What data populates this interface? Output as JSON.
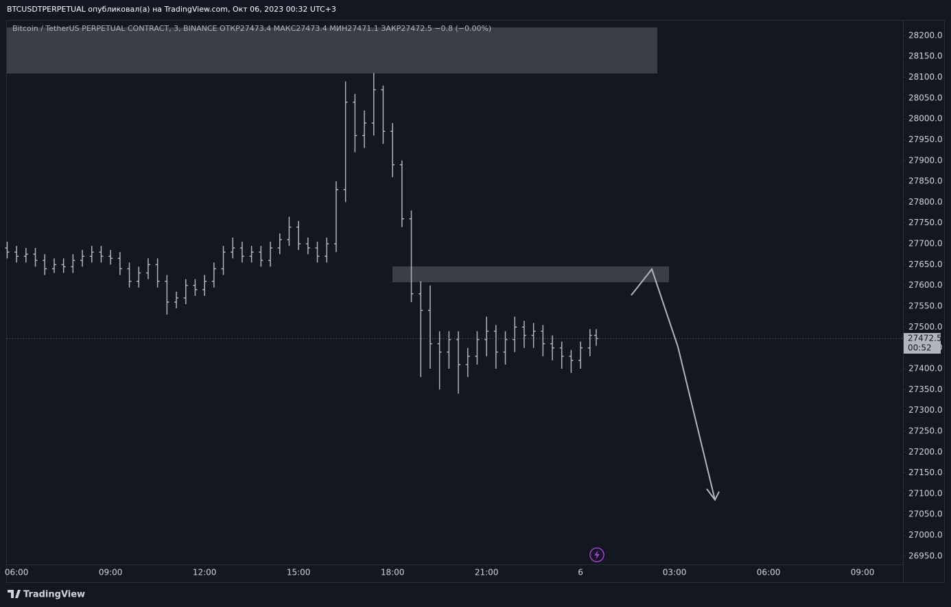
{
  "header": "BTCUSDTPERPETUAL опубликовал(а) на TradingView.com, Окт 06, 2023 00:32 UTC+3",
  "footer": "TradingView",
  "chart_data": {
    "type": "ohlc",
    "legend": "Bitcoin / TetherUS PERPETUAL CONTRACT, 3, BINANCE  ОТКР27473.4  МАКС27473.4  МИН27471.1  ЗАКР27472.5  −0.8 (−0.00%)",
    "countdown": "00:52",
    "color": "#b2b5be",
    "x": [
      5.7,
      6.0,
      6.3,
      6.6,
      6.9,
      7.2,
      7.5,
      7.8,
      8.1,
      8.4,
      8.7,
      9.0,
      9.3,
      9.6,
      9.9,
      10.2,
      10.5,
      10.8,
      11.1,
      11.4,
      11.7,
      12.0,
      12.3,
      12.6,
      12.9,
      13.2,
      13.5,
      13.8,
      14.1,
      14.4,
      14.7,
      15.0,
      15.3,
      15.6,
      15.9,
      16.2,
      16.5,
      16.8,
      17.1,
      17.4,
      17.7,
      18.0,
      18.3,
      18.6,
      18.9,
      19.2,
      19.5,
      19.8,
      20.1,
      20.4,
      20.7,
      21.0,
      21.3,
      21.6,
      21.9,
      22.2,
      22.5,
      22.8,
      23.1,
      23.4,
      23.7,
      24.0,
      24.3,
      24.5
    ],
    "open": [
      27690,
      27680,
      27670,
      27675,
      27660,
      27640,
      27650,
      27645,
      27660,
      27670,
      27680,
      27670,
      27665,
      27640,
      27610,
      27630,
      27650,
      27610,
      27560,
      27570,
      27600,
      27590,
      27610,
      27640,
      27680,
      27690,
      27670,
      27680,
      27660,
      27690,
      27710,
      27740,
      27700,
      27690,
      27670,
      27700,
      27830,
      28040,
      27960,
      27990,
      28070,
      27970,
      27890,
      27760,
      27580,
      27540,
      27460,
      27440,
      27470,
      27410,
      27430,
      27470,
      27490,
      27440,
      27470,
      27500,
      27480,
      27490,
      27460,
      27450,
      27430,
      27420,
      27450,
      27480
    ],
    "high": [
      27705,
      27695,
      27690,
      27690,
      27675,
      27665,
      27665,
      27675,
      27685,
      27695,
      27695,
      27685,
      27680,
      27655,
      27645,
      27665,
      27665,
      27625,
      27585,
      27615,
      27615,
      27625,
      27655,
      27695,
      27715,
      27705,
      27695,
      27695,
      27705,
      27725,
      27765,
      27755,
      27715,
      27705,
      27715,
      27850,
      28090,
      28060,
      28020,
      28110,
      28080,
      27990,
      27900,
      27780,
      27610,
      27600,
      27490,
      27490,
      27490,
      27450,
      27490,
      27525,
      27505,
      27490,
      27525,
      27515,
      27510,
      27505,
      27480,
      27465,
      27445,
      27465,
      27495,
      27495
    ],
    "low": [
      27665,
      27655,
      27655,
      27645,
      27625,
      27630,
      27630,
      27630,
      27645,
      27655,
      27655,
      27650,
      27625,
      27595,
      27595,
      27615,
      27595,
      27530,
      27545,
      27555,
      27575,
      27575,
      27595,
      27625,
      27665,
      27655,
      27655,
      27645,
      27645,
      27675,
      27695,
      27685,
      27675,
      27655,
      27655,
      27680,
      27800,
      27920,
      27930,
      27960,
      27940,
      27860,
      27740,
      27560,
      27380,
      27400,
      27350,
      27400,
      27340,
      27380,
      27410,
      27430,
      27400,
      27410,
      27440,
      27450,
      27450,
      27430,
      27420,
      27400,
      27390,
      27400,
      27430,
      27455
    ],
    "close": [
      27680,
      27670,
      27675,
      27660,
      27640,
      27650,
      27645,
      27660,
      27670,
      27680,
      27670,
      27665,
      27640,
      27610,
      27630,
      27650,
      27610,
      27560,
      27570,
      27600,
      27590,
      27610,
      27640,
      27680,
      27690,
      27670,
      27680,
      27660,
      27690,
      27710,
      27740,
      27700,
      27690,
      27670,
      27700,
      27830,
      28040,
      27960,
      27990,
      28070,
      27970,
      27890,
      27760,
      27580,
      27540,
      27460,
      27440,
      27470,
      27410,
      27430,
      27470,
      27490,
      27440,
      27470,
      27500,
      27480,
      27490,
      27460,
      27450,
      27430,
      27420,
      27450,
      27480,
      27472.5
    ],
    "xlim": [
      5.69,
      34.29
    ],
    "xticks": [
      {
        "value": 6,
        "label": "06:00"
      },
      {
        "value": 9,
        "label": "09:00"
      },
      {
        "value": 12,
        "label": "12:00"
      },
      {
        "value": 15,
        "label": "15:00"
      },
      {
        "value": 18,
        "label": "18:00"
      },
      {
        "value": 21,
        "label": "21:00"
      },
      {
        "value": 24,
        "label": "6"
      },
      {
        "value": 27,
        "label": "03:00"
      },
      {
        "value": 30,
        "label": "06:00"
      },
      {
        "value": 33,
        "label": "09:00"
      }
    ],
    "ylim": [
      26930,
      28236
    ],
    "yticks": [
      {
        "value": 26950,
        "label": "26950.0"
      },
      {
        "value": 27000,
        "label": "27000.0"
      },
      {
        "value": 27050,
        "label": "27050.0"
      },
      {
        "value": 27100,
        "label": "27100.0"
      },
      {
        "value": 27150,
        "label": "27150.0"
      },
      {
        "value": 27200,
        "label": "27200.0"
      },
      {
        "value": 27250,
        "label": "27250.0"
      },
      {
        "value": 27300,
        "label": "27300.0"
      },
      {
        "value": 27350,
        "label": "27350.0"
      },
      {
        "value": 27400,
        "label": "27400.0"
      },
      {
        "value": 27450,
        "label": "27450.0"
      },
      {
        "value": 27500,
        "label": "27500.0"
      },
      {
        "value": 27550,
        "label": "27550.0"
      },
      {
        "value": 27600,
        "label": "27600.0"
      },
      {
        "value": 27650,
        "label": "27650.0"
      },
      {
        "value": 27700,
        "label": "27700.0"
      },
      {
        "value": 27750,
        "label": "27750.0"
      },
      {
        "value": 27800,
        "label": "27800.0"
      },
      {
        "value": 27850,
        "label": "27850.0"
      },
      {
        "value": 27900,
        "label": "27900.0"
      },
      {
        "value": 27950,
        "label": "27950.0"
      },
      {
        "value": 28000,
        "label": "28000.0"
      },
      {
        "value": 28050,
        "label": "28050.0"
      },
      {
        "value": 28100,
        "label": "28100.0"
      },
      {
        "value": 28150,
        "label": "28150.0"
      },
      {
        "value": 28200,
        "label": "28200.0"
      }
    ]
  }
}
